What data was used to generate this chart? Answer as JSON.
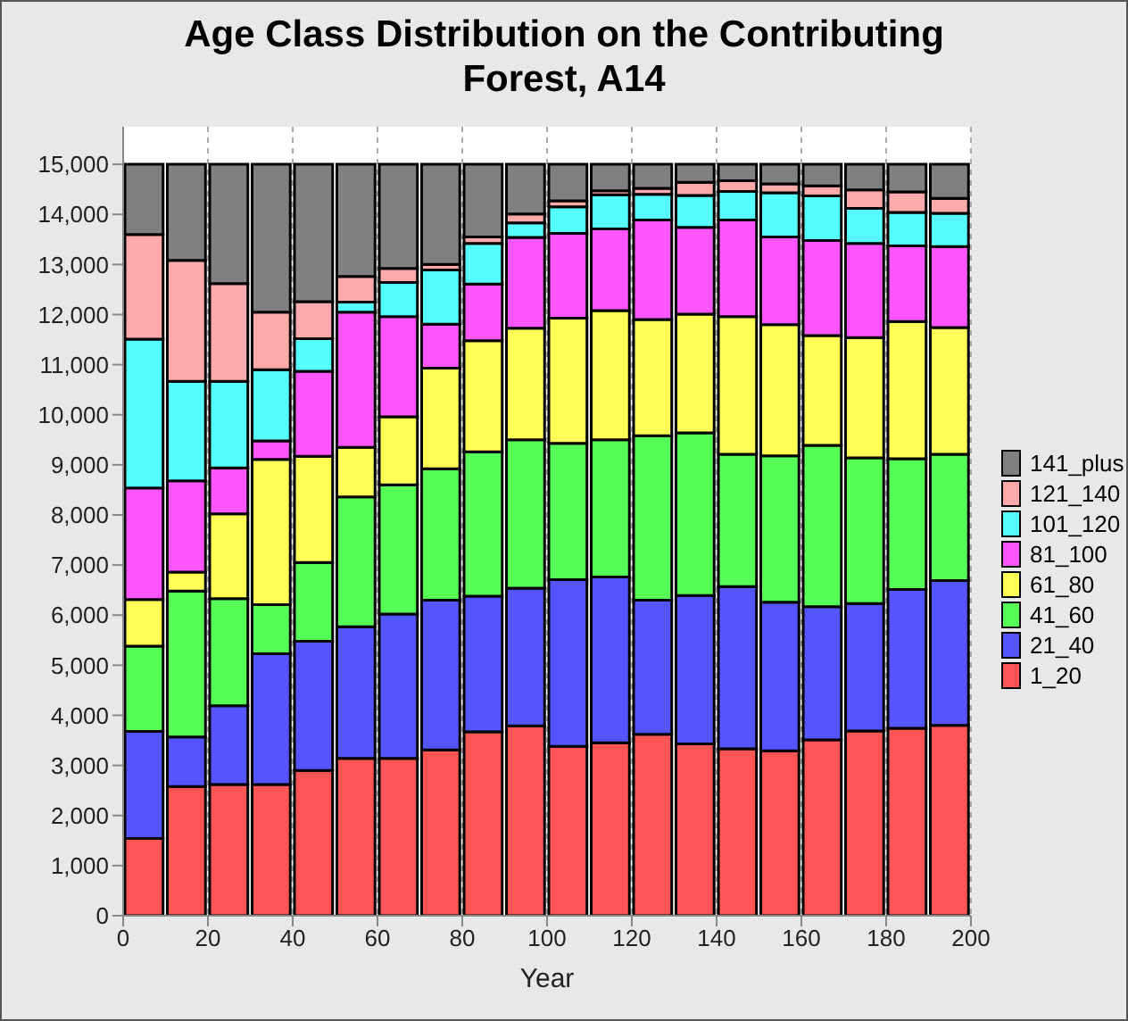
{
  "chart_data": {
    "type": "bar",
    "title": "Age Class Distribution on the Contributing Forest, A14",
    "xlabel": "Year",
    "stacked": true,
    "legend": "right",
    "grid": "x",
    "x": [
      5,
      15,
      25,
      35,
      45,
      55,
      65,
      75,
      85,
      95,
      105,
      115,
      125,
      135,
      145,
      155,
      165,
      175,
      185,
      195
    ],
    "xlim": [
      0,
      200
    ],
    "xticks": [
      0,
      20,
      40,
      60,
      80,
      100,
      120,
      140,
      160,
      180,
      200
    ],
    "ylim": [
      0,
      15750
    ],
    "yticks": [
      {
        "value": 0,
        "label": "0"
      },
      {
        "value": 1000,
        "label": "1,000"
      },
      {
        "value": 2000,
        "label": "2,000"
      },
      {
        "value": 3000,
        "label": "3,000"
      },
      {
        "value": 4000,
        "label": "4,000"
      },
      {
        "value": 5000,
        "label": "5,000"
      },
      {
        "value": 6000,
        "label": "6,000"
      },
      {
        "value": 7000,
        "label": "7,000"
      },
      {
        "value": 8000,
        "label": "8,000"
      },
      {
        "value": 9000,
        "label": "9,000"
      },
      {
        "value": 10000,
        "label": "10,000"
      },
      {
        "value": 11000,
        "label": "11,000"
      },
      {
        "value": 12000,
        "label": "12,000"
      },
      {
        "value": 13000,
        "label": "13,000"
      },
      {
        "value": 14000,
        "label": "14,000"
      },
      {
        "value": 15000,
        "label": "15,000"
      }
    ],
    "series": [
      {
        "name": "1_20",
        "color": "#ff5555",
        "values": [
          1540,
          2580,
          2620,
          2620,
          2900,
          3140,
          3140,
          3310,
          3670,
          3790,
          3380,
          3450,
          3620,
          3430,
          3330,
          3290,
          3510,
          3690,
          3740,
          3800
        ]
      },
      {
        "name": "21_40",
        "color": "#5555ff",
        "values": [
          2140,
          990,
          1570,
          2610,
          2580,
          2630,
          2880,
          2990,
          2710,
          2750,
          3330,
          3310,
          2680,
          2960,
          3240,
          2970,
          2660,
          2540,
          2770,
          2890
        ]
      },
      {
        "name": "41_60",
        "color": "#55ff55",
        "values": [
          1700,
          2910,
          2140,
          980,
          1570,
          2590,
          2580,
          2620,
          2880,
          2960,
          2720,
          2740,
          3280,
          3250,
          2640,
          2920,
          3220,
          2910,
          2610,
          2520
        ]
      },
      {
        "name": "61_80",
        "color": "#ffff55",
        "values": [
          930,
          380,
          1690,
          2900,
          2120,
          990,
          1360,
          2010,
          2220,
          2230,
          2500,
          2580,
          2320,
          2370,
          2750,
          2620,
          2190,
          2400,
          2740,
          2530
        ]
      },
      {
        "name": "81_100",
        "color": "#ff55ff",
        "values": [
          2230,
          1820,
          920,
          370,
          1700,
          2700,
          2000,
          880,
          1130,
          1810,
          1690,
          1630,
          1990,
          1730,
          1930,
          1750,
          1900,
          1880,
          1510,
          1620
        ]
      },
      {
        "name": "101_120",
        "color": "#55ffff",
        "values": [
          2970,
          1990,
          1730,
          1420,
          650,
          200,
          680,
          1080,
          810,
          290,
          530,
          680,
          510,
          640,
          570,
          880,
          890,
          700,
          670,
          660
        ]
      },
      {
        "name": "121_140",
        "color": "#ffaaaa",
        "values": [
          2090,
          2410,
          1950,
          1150,
          740,
          510,
          280,
          110,
          130,
          180,
          120,
          80,
          120,
          260,
          210,
          180,
          200,
          370,
          410,
          300
        ]
      },
      {
        "name": "141_plus",
        "color": "#808080",
        "values": [
          1400,
          1920,
          2380,
          2950,
          2740,
          2240,
          2080,
          2000,
          1450,
          990,
          730,
          530,
          480,
          360,
          330,
          390,
          430,
          510,
          550,
          680
        ]
      }
    ]
  }
}
